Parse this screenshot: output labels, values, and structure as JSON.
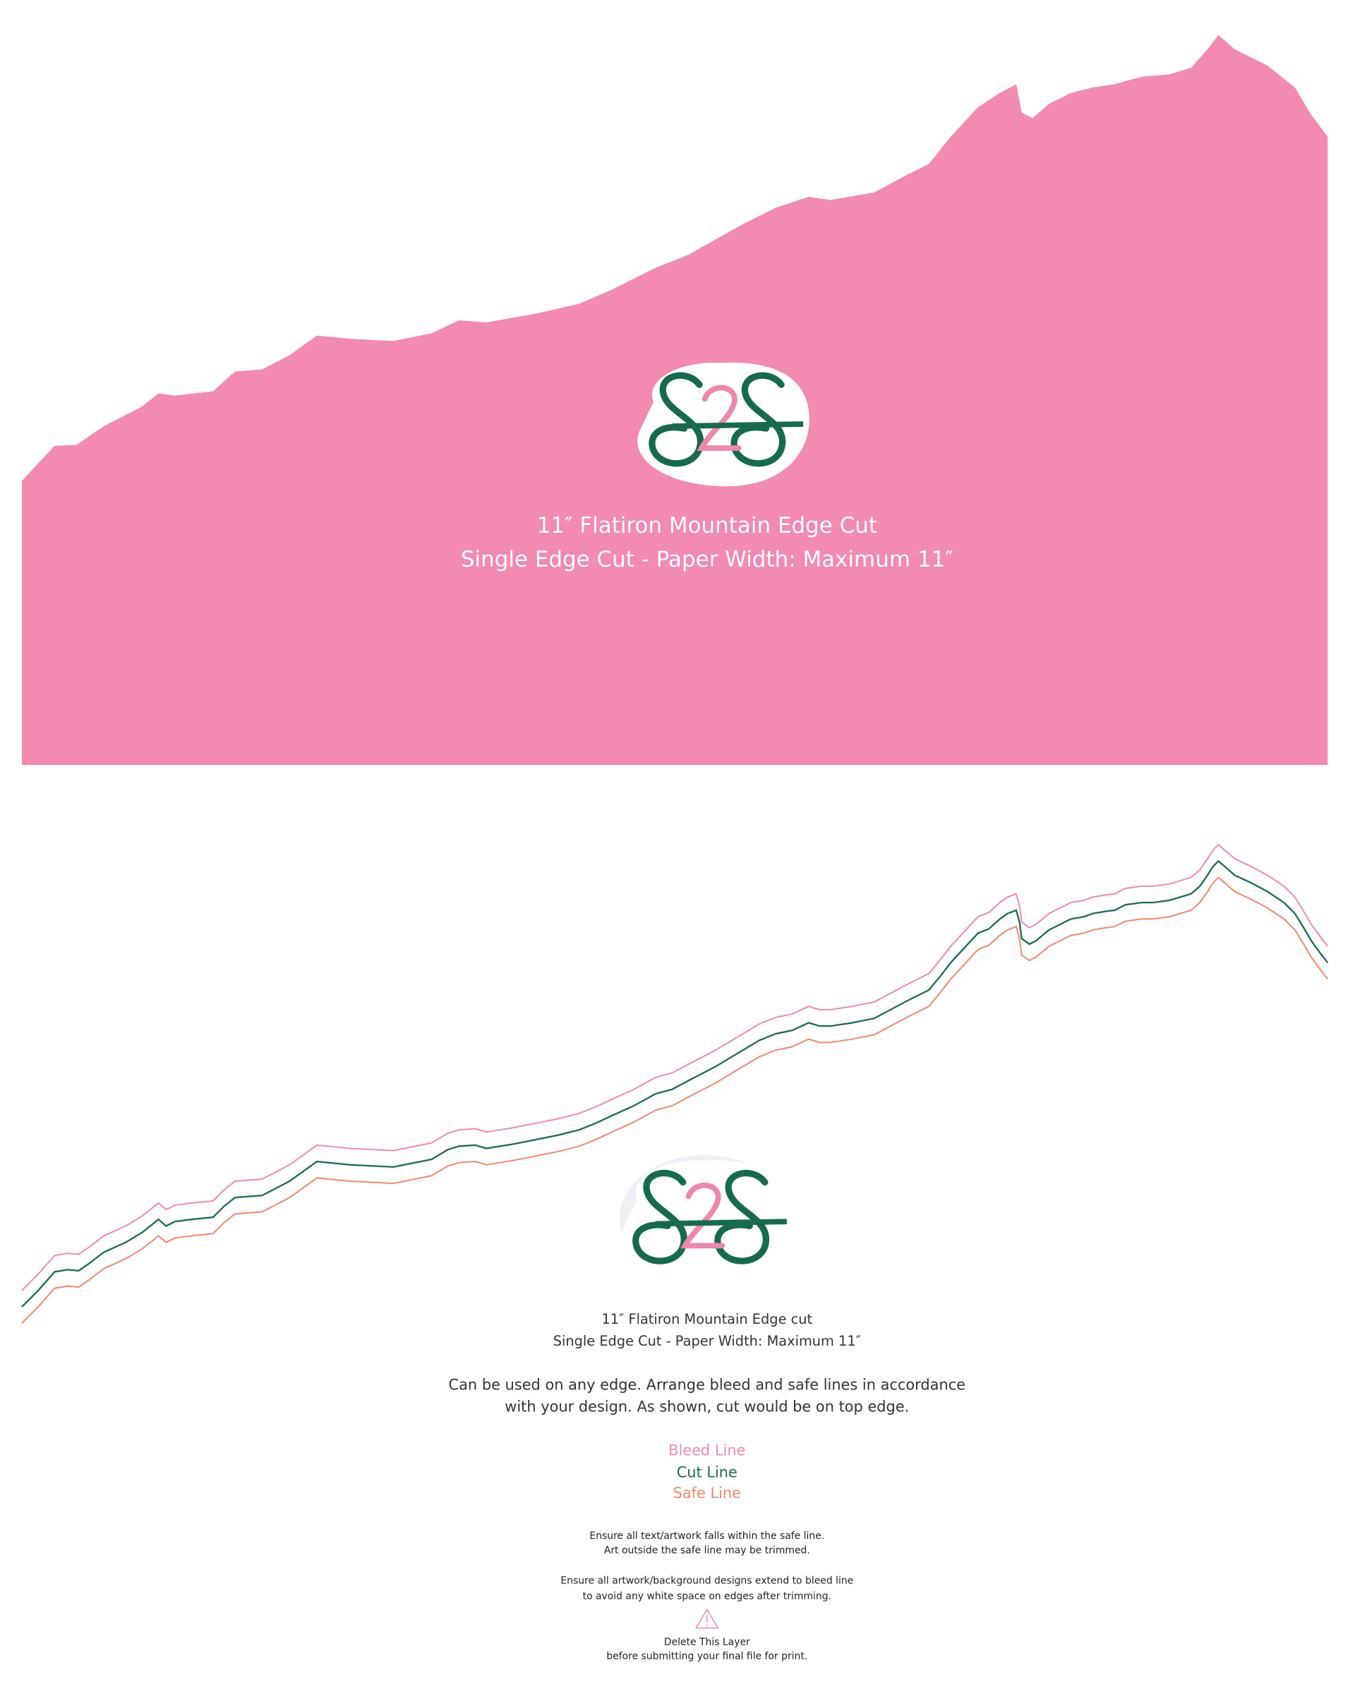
{
  "top": {
    "title": "11″ Flatiron Mountain Edge Cut",
    "subtitle": "Single Edge Cut - Paper Width: Maximum 11″"
  },
  "bottom": {
    "title": "11″ Flatiron Mountain Edge cut",
    "subtitle": "Single Edge Cut - Paper Width: Maximum 11″",
    "description": [
      "Can be used on any edge. Arrange bleed and safe lines in accordance",
      "with your design. As shown, cut would be on top edge."
    ],
    "legend": [
      "Bleed Line",
      "Cut Line",
      "Safe Line"
    ],
    "notes": [
      "Ensure all text/artwork falls within the safe line.",
      "Art outside the safe line may be trimmed.",
      "Ensure all artwork/background designs extend to bleed line",
      "to avoid any white space on edges after trimming.",
      "Delete This Layer",
      "before submitting your final file for print."
    ]
  }
}
